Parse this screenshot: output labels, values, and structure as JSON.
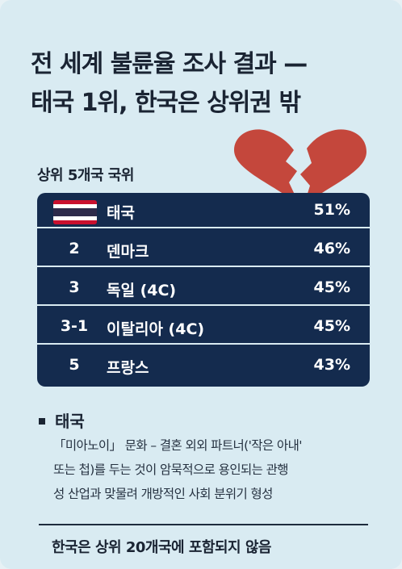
{
  "title_line1": "전 세계 불륜율 조사 결과 —",
  "title_line2": "태국 1위, 한국은 상위권 밖",
  "section_label": "상위 5개국 국위",
  "rows": [
    {
      "rank": "",
      "name": "태국",
      "pct": "51%",
      "has_flag": true
    },
    {
      "rank": "2",
      "name": "덴마크",
      "pct": "46%"
    },
    {
      "rank": "3",
      "name": "독일 (4C)",
      "pct": "45%"
    },
    {
      "rank": "3-1",
      "name": "이탈리아 (4C)",
      "pct": "45%"
    },
    {
      "rank": "5",
      "name": "프랑스",
      "pct": "43%"
    }
  ],
  "note": {
    "heading": "태국",
    "line1": "「미아노이」 문화 – 결혼 외외 파트너('작은 아내'",
    "line2": "또는 첩)를 두는 것이 암묵적으로 용인되는 관행",
    "line3": "성 산업과 맞물려 개방적인 사회 분위기 형성"
  },
  "footer": "한국은 상위 20개국에 포함되지 않음",
  "colors": {
    "background": "#d9ebf2",
    "table": "#142b4e",
    "heart": "#c4473c",
    "flag_red": "#c8102e",
    "flag_blue": "#2d2a4a"
  },
  "icons": [
    "broken-heart-icon",
    "thailand-flag-icon"
  ]
}
